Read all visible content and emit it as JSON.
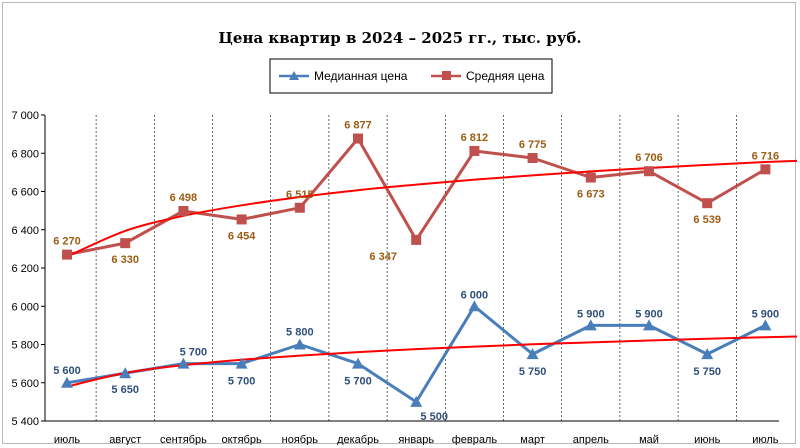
{
  "chart_data": {
    "type": "line",
    "title": "Цена квартир в 2024 – 2025 гг., тыс. руб.",
    "categories": [
      "июль",
      "август",
      "сентябрь",
      "октябрь",
      "ноябрь",
      "декабрь",
      "январь",
      "февраль",
      "март",
      "апрель",
      "май",
      "июнь",
      "июль"
    ],
    "ylim": [
      5400,
      7000
    ],
    "yticks": [
      5400,
      5600,
      5800,
      6000,
      6200,
      6400,
      6600,
      6800,
      7000
    ],
    "ytick_labels": [
      "5 400",
      "5 600",
      "5 800",
      "6 000",
      "6 200",
      "6 400",
      "6 600",
      "6 800",
      "7 000"
    ],
    "grid": "vertical-dashed",
    "legend": "top-center",
    "series": [
      {
        "name": "Медианная цена",
        "color": "#4a7ebb",
        "marker": "triangle",
        "values": [
          5600,
          5650,
          5700,
          5700,
          5800,
          5700,
          5500,
          6000,
          5750,
          5900,
          5900,
          5750,
          5900
        ],
        "labels": [
          "5 600",
          "5 650",
          "5 700",
          "5 700",
          "5 800",
          "5 700",
          "5 500",
          "6 000",
          "5 750",
          "5 900",
          "5 900",
          "5 750",
          "5 900"
        ]
      },
      {
        "name": "Средняя цена",
        "color": "#c0504d",
        "marker": "square",
        "values": [
          6270,
          6330,
          6498,
          6454,
          6515,
          6877,
          6347,
          6812,
          6775,
          6673,
          6706,
          6539,
          6716
        ],
        "labels": [
          "6 270",
          "6 330",
          "6 498",
          "6 454",
          "6 515",
          "6 877",
          "6 347",
          "6 812",
          "6 775",
          "6 673",
          "6 706",
          "6 539",
          "6 716"
        ]
      }
    ],
    "trendlines": [
      {
        "type": "logarithmic",
        "color": "#ff0000",
        "values": [
          5580,
          5651,
          5692,
          5720,
          5742,
          5760,
          5776,
          5789,
          5801,
          5811,
          5821,
          5830,
          5838,
          5845
        ]
      },
      {
        "type": "logarithmic",
        "color": "#ff0000",
        "values": [
          6260,
          6394,
          6473,
          6528,
          6571,
          6607,
          6636,
          6662,
          6684,
          6705,
          6723,
          6739,
          6754,
          6765
        ]
      }
    ]
  }
}
